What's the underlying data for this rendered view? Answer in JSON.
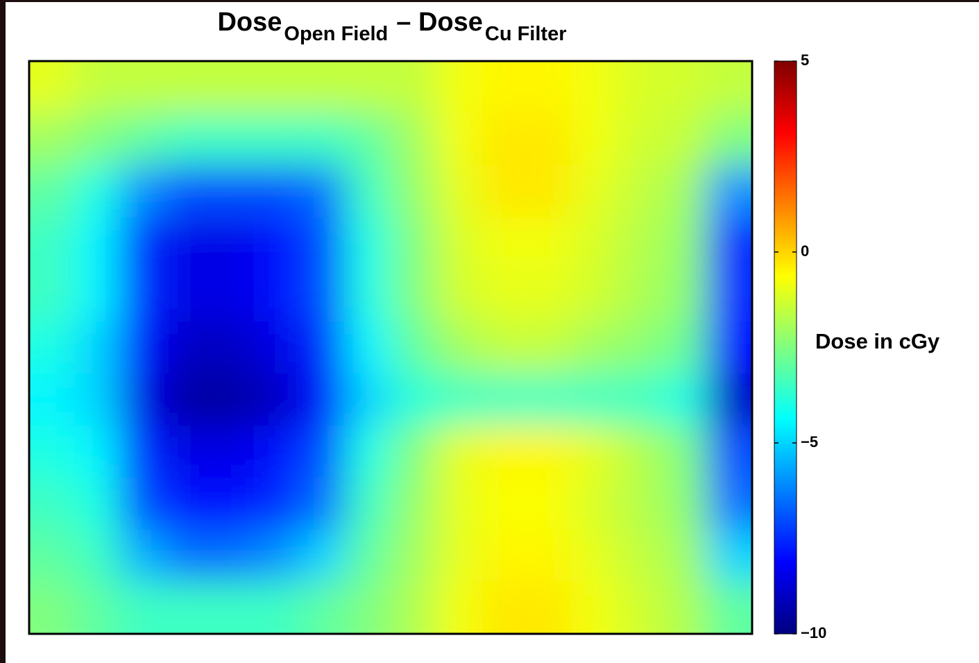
{
  "chart_data": {
    "type": "heatmap",
    "title": {
      "main1": "Dose",
      "sub1": "Open Field",
      "main2": "– Dose",
      "sub2": "Cu Filter"
    },
    "colorbar_label": "Dose in cGy",
    "colormap": "jet",
    "clim": [
      -10,
      5
    ],
    "cticks": [
      5,
      0,
      {
        "value": -5,
        "label": "−5"
      },
      {
        "value": -10,
        "label": "−10"
      }
    ],
    "z": [
      [
        -1,
        -1.5,
        -1.5,
        -1.5,
        -1.5,
        -1.5,
        -1.5,
        -1.5,
        -1.5,
        -0.8,
        -0.5,
        -0.5,
        -0.8,
        -1.2,
        -1.3,
        -1.5
      ],
      [
        -2,
        -2.5,
        -3,
        -3.5,
        -3.5,
        -3.5,
        -3.5,
        -3,
        -2,
        -0.8,
        -0.3,
        -0.3,
        -0.8,
        -1.3,
        -1.5,
        -2.5
      ],
      [
        -3,
        -4,
        -6,
        -7,
        -7,
        -7,
        -6.5,
        -3.5,
        -2.2,
        -1,
        -0.3,
        -0.3,
        -1,
        -1.5,
        -2,
        -6
      ],
      [
        -3.5,
        -4.5,
        -7.5,
        -8.5,
        -8.5,
        -8,
        -7,
        -4,
        -2.5,
        -1.2,
        -0.8,
        -0.8,
        -1.2,
        -1.7,
        -2.2,
        -7.5
      ],
      [
        -3.5,
        -4.5,
        -7.5,
        -8.5,
        -8.5,
        -8,
        -7,
        -4,
        -2.5,
        -1.3,
        -1,
        -1,
        -1.3,
        -1.8,
        -2.3,
        -7.5
      ],
      [
        -4,
        -5,
        -8,
        -9,
        -9,
        -8.5,
        -7.5,
        -4.5,
        -3,
        -2,
        -1.5,
        -1.5,
        -2,
        -2.3,
        -2.8,
        -8
      ],
      [
        -4.5,
        -5,
        -8.5,
        -9.5,
        -9.5,
        -9,
        -8,
        -5,
        -3.8,
        -3.5,
        -3.5,
        -3.5,
        -3.5,
        -3.5,
        -4,
        -9
      ],
      [
        -4,
        -4.5,
        -7.5,
        -8.5,
        -8.5,
        -8,
        -7,
        -4,
        -2.5,
        -1,
        -0.5,
        -0.5,
        -1,
        -1.7,
        -2.5,
        -7
      ],
      [
        -3.5,
        -4,
        -7,
        -8,
        -8,
        -7.5,
        -6.5,
        -3.5,
        -2.2,
        -1,
        -0.7,
        -0.7,
        -1.2,
        -1.7,
        -2.3,
        -6.5
      ],
      [
        -3,
        -3.5,
        -5.5,
        -6.5,
        -6.5,
        -6,
        -5,
        -3,
        -2,
        -1,
        -0.5,
        -0.5,
        -1,
        -1.5,
        -2,
        -5
      ],
      [
        -2.5,
        -3,
        -3.5,
        -3.5,
        -3.5,
        -3.5,
        -3,
        -2.5,
        -1.8,
        -0.8,
        -0.3,
        -0.3,
        -0.8,
        -1.3,
        -1.8,
        -3
      ]
    ]
  }
}
